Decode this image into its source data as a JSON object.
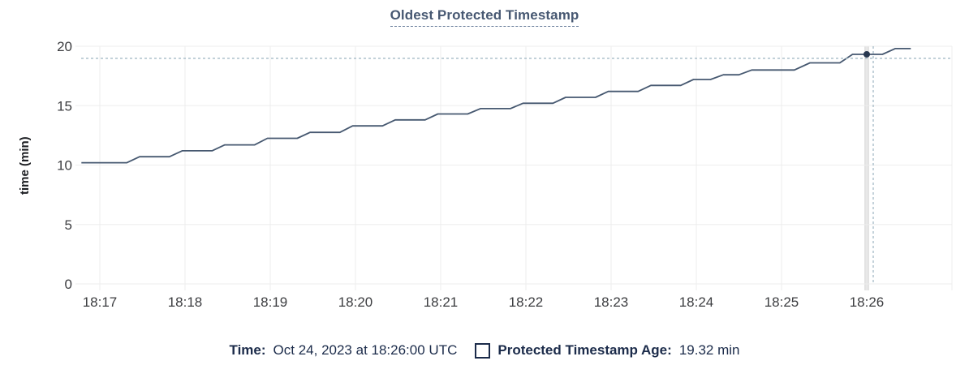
{
  "chart_data": {
    "type": "line",
    "title": "Oldest Protected Timestamp",
    "ylabel": "time (min)",
    "xlabel": "",
    "ylim": [
      0,
      20
    ],
    "yticks": [
      0,
      5,
      10,
      15,
      20
    ],
    "xticks": [
      "18:17",
      "18:18",
      "18:19",
      "18:20",
      "18:21",
      "18:22",
      "18:23",
      "18:24",
      "18:25",
      "18:26"
    ],
    "grid": true,
    "legend_position": "bottom",
    "series": [
      {
        "name": "Protected Timestamp Age",
        "unit": "min",
        "points": [
          [
            "18:16:47",
            10.2
          ],
          [
            "18:17:19",
            10.2
          ],
          [
            "18:17:28",
            10.7
          ],
          [
            "18:17:49",
            10.7
          ],
          [
            "18:17:58",
            11.2
          ],
          [
            "18:18:19",
            11.2
          ],
          [
            "18:18:28",
            11.7
          ],
          [
            "18:18:49",
            11.7
          ],
          [
            "18:18:58",
            12.25
          ],
          [
            "18:19:19",
            12.25
          ],
          [
            "18:19:28",
            12.75
          ],
          [
            "18:19:49",
            12.75
          ],
          [
            "18:19:58",
            13.3
          ],
          [
            "18:20:19",
            13.3
          ],
          [
            "18:20:28",
            13.8
          ],
          [
            "18:20:49",
            13.8
          ],
          [
            "18:20:58",
            14.3
          ],
          [
            "18:21:19",
            14.3
          ],
          [
            "18:21:28",
            14.75
          ],
          [
            "18:21:49",
            14.75
          ],
          [
            "18:21:58",
            15.2
          ],
          [
            "18:22:19",
            15.2
          ],
          [
            "18:22:28",
            15.7
          ],
          [
            "18:22:49",
            15.7
          ],
          [
            "18:22:58",
            16.2
          ],
          [
            "18:23:19",
            16.2
          ],
          [
            "18:23:28",
            16.7
          ],
          [
            "18:23:49",
            16.7
          ],
          [
            "18:23:58",
            17.2
          ],
          [
            "18:24:10",
            17.2
          ],
          [
            "18:24:19",
            17.6
          ],
          [
            "18:24:30",
            17.6
          ],
          [
            "18:24:39",
            18.0
          ],
          [
            "18:25:09",
            18.0
          ],
          [
            "18:25:20",
            18.6
          ],
          [
            "18:25:41",
            18.6
          ],
          [
            "18:25:50",
            19.32
          ],
          [
            "18:26:11",
            19.32
          ],
          [
            "18:26:20",
            19.8
          ],
          [
            "18:26:31",
            19.8
          ]
        ]
      }
    ],
    "hover": {
      "time": "18:26:00",
      "value": 19.32
    },
    "colors": {
      "line": "#465870",
      "dot": "#283850",
      "crosshair": "#a5bac6",
      "grid": "#ededed",
      "hover_band": "#e3e3e3",
      "title": "#475872",
      "tick_text": "#3c3d40"
    }
  },
  "footer": {
    "time_label": "Time:",
    "time_value": "Oct 24, 2023 at 18:26:00 UTC",
    "series_label": "Protected Timestamp Age:",
    "series_value": "19.32 min",
    "text_color": "#1b2b4a"
  }
}
